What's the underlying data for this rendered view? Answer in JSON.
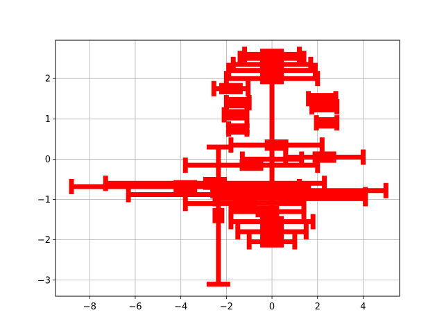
{
  "chart_data": {
    "type": "scatter",
    "title": "",
    "xlabel": "",
    "ylabel": "",
    "xlim": [
      -9.5,
      5.6
    ],
    "ylim": [
      -3.4,
      2.95
    ],
    "grid": true,
    "xticks": [
      -8,
      -6,
      -4,
      -2,
      0,
      2,
      4
    ],
    "yticks": [
      -3,
      -2,
      -1,
      0,
      1,
      2
    ],
    "xtick_labels": [
      "−8",
      "−6",
      "−4",
      "−2",
      "0",
      "2",
      "4"
    ],
    "ytick_labels": [
      "−3",
      "−2",
      "−1",
      "0",
      "1",
      "2"
    ],
    "series": [
      {
        "color": "#ff0000",
        "style": "errorbar",
        "points": [
          {
            "x": 0.0,
            "y": 2.6,
            "xerr": 1.2,
            "yerr": 0.08
          },
          {
            "x": 0.0,
            "y": 2.5,
            "xerr": 1.4,
            "yerr": 0.08
          },
          {
            "x": 0.0,
            "y": 2.35,
            "xerr": 1.7,
            "yerr": 0.08
          },
          {
            "x": 0.0,
            "y": 2.2,
            "xerr": 1.9,
            "yerr": 0.08
          },
          {
            "x": 0.0,
            "y": 2.0,
            "xerr": 2.0,
            "yerr": 0.08
          },
          {
            "x": -1.8,
            "y": 1.75,
            "xerr": 0.75,
            "yerr": 0.08
          },
          {
            "x": 2.2,
            "y": 1.5,
            "xerr": 0.6,
            "yerr": 0.08
          },
          {
            "x": -1.5,
            "y": 1.4,
            "xerr": 0.5,
            "yerr": 0.08
          },
          {
            "x": 2.3,
            "y": 1.3,
            "xerr": 0.55,
            "yerr": 0.08
          },
          {
            "x": -1.6,
            "y": 1.1,
            "xerr": 0.5,
            "yerr": 0.08
          },
          {
            "x": 2.4,
            "y": 0.9,
            "xerr": 0.45,
            "yerr": 0.08
          },
          {
            "x": -1.5,
            "y": 0.75,
            "xerr": 0.4,
            "yerr": 0.08
          },
          {
            "x": 0.2,
            "y": 0.35,
            "xerr": 2.0,
            "yerr": 0.08
          },
          {
            "x": 2.3,
            "y": 0.05,
            "xerr": 1.7,
            "yerr": 0.08
          },
          {
            "x": -0.9,
            "y": -0.15,
            "xerr": 2.9,
            "yerr": 0.08
          },
          {
            "x": -2.5,
            "y": -0.6,
            "xerr": 4.8,
            "yerr": 0.1
          },
          {
            "x": -3.8,
            "y": -0.68,
            "xerr": 5.0,
            "yerr": 0.1
          },
          {
            "x": 1.2,
            "y": -0.78,
            "xerr": 3.8,
            "yerr": 0.08
          },
          {
            "x": -1.1,
            "y": -0.88,
            "xerr": 5.2,
            "yerr": 0.08
          },
          {
            "x": 0.8,
            "y": -0.98,
            "xerr": 3.3,
            "yerr": 0.08
          },
          {
            "x": -1.2,
            "y": -1.1,
            "xerr": 2.6,
            "yerr": 0.08
          },
          {
            "x": -0.2,
            "y": -1.3,
            "xerr": 1.6,
            "yerr": 0.08
          },
          {
            "x": -2.35,
            "y": -1.4,
            "xerr": 0.15,
            "yerr": 1.7
          },
          {
            "x": 0.0,
            "y": -1.55,
            "xerr": 1.8,
            "yerr": 0.08
          },
          {
            "x": 0.0,
            "y": -1.8,
            "xerr": 1.5,
            "yerr": 0.08
          },
          {
            "x": 0.0,
            "y": -2.05,
            "xerr": 1.0,
            "yerr": 0.08
          },
          {
            "x": 0.0,
            "y": 0.0,
            "xerr": 1.3,
            "yerr": 2.0
          }
        ]
      }
    ]
  }
}
